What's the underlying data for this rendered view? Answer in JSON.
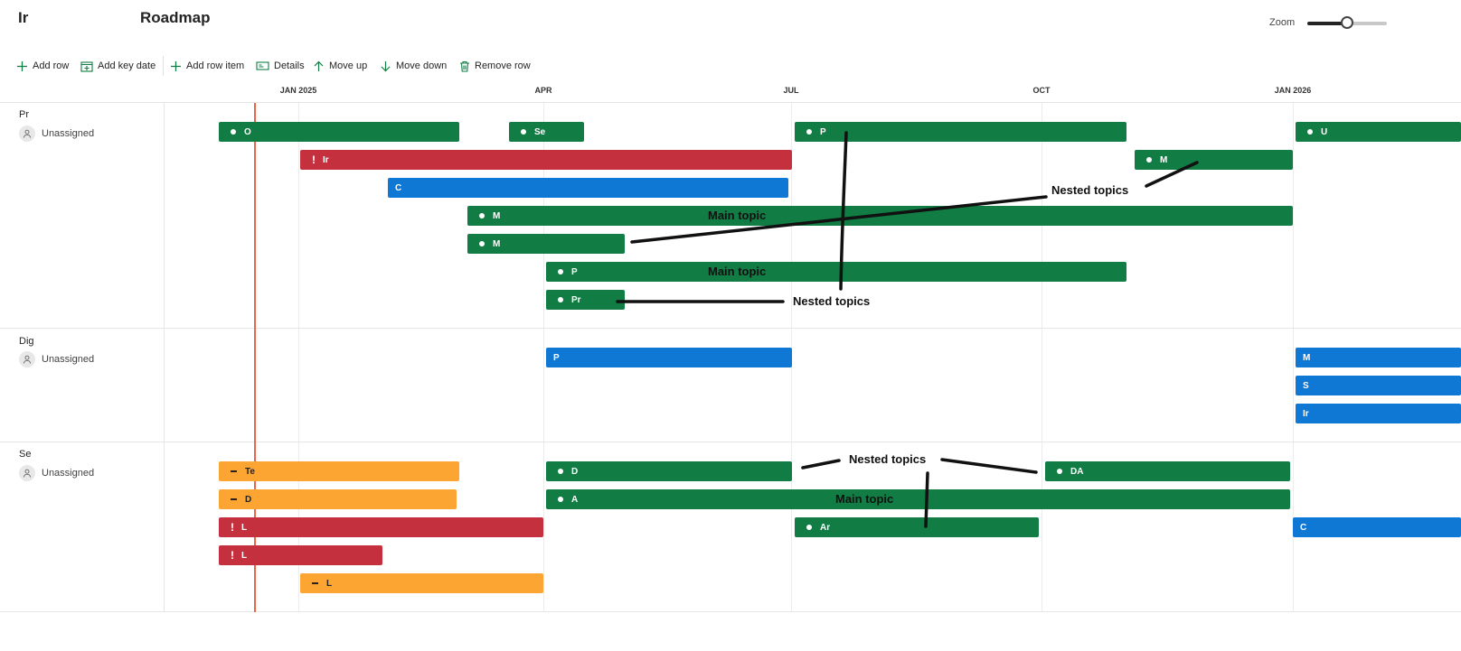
{
  "header": {
    "app_title": "Ir",
    "page_title": "Roadmap",
    "zoom_label": "Zoom",
    "zoom_level": 0.5
  },
  "toolbar": {
    "add_row": "Add row",
    "add_key_date": "Add key date",
    "add_row_item": "Add row item",
    "details": "Details",
    "move_up": "Move up",
    "move_down": "Move down",
    "remove_row": "Remove row",
    "accent_color": "#117c43"
  },
  "timeline": {
    "months": [
      "JAN 2025",
      "APR",
      "JUL",
      "OCT",
      "JAN 2026"
    ]
  },
  "rows": [
    {
      "name": "Pr",
      "owner": "Unassigned",
      "items": [
        {
          "text": "O",
          "color": "green",
          "marker": "dot"
        },
        {
          "text": "Se",
          "color": "green",
          "marker": "dot"
        },
        {
          "text": "P",
          "color": "green",
          "marker": "dot"
        },
        {
          "text": "U",
          "color": "green",
          "marker": "dot"
        },
        {
          "text": "Ir",
          "color": "red",
          "marker": "excl"
        },
        {
          "text": "M",
          "color": "green",
          "marker": "dot"
        },
        {
          "text": "C",
          "color": "blue",
          "marker": "none"
        },
        {
          "text": "M",
          "color": "green",
          "marker": "dot"
        },
        {
          "text": "M",
          "color": "green",
          "marker": "dot"
        },
        {
          "text": "P",
          "color": "green",
          "marker": "dot"
        },
        {
          "text": "Pr",
          "color": "green",
          "marker": "dot"
        }
      ]
    },
    {
      "name": "Dig",
      "owner": "Unassigned",
      "items": [
        {
          "text": "P",
          "color": "blue",
          "marker": "none"
        },
        {
          "text": "M",
          "color": "blue",
          "marker": "none"
        },
        {
          "text": "S",
          "color": "blue",
          "marker": "none"
        },
        {
          "text": "Ir",
          "color": "blue",
          "marker": "none"
        }
      ]
    },
    {
      "name": "Se",
      "owner": "Unassigned",
      "items": [
        {
          "text": "Te",
          "color": "orange",
          "marker": "dash"
        },
        {
          "text": "D",
          "color": "green",
          "marker": "dot"
        },
        {
          "text": "DA",
          "color": "green",
          "marker": "dot"
        },
        {
          "text": "D",
          "color": "orange",
          "marker": "dash"
        },
        {
          "text": "A",
          "color": "green",
          "marker": "dot"
        },
        {
          "text": "L",
          "color": "red",
          "marker": "excl"
        },
        {
          "text": "Ar",
          "color": "green",
          "marker": "dot"
        },
        {
          "text": "C",
          "color": "blue",
          "marker": "none"
        },
        {
          "text": "L",
          "color": "red",
          "marker": "excl"
        },
        {
          "text": "L",
          "color": "orange",
          "marker": "dash"
        }
      ]
    }
  ],
  "annotations": {
    "main_topic": "Main topic",
    "nested_topics": "Nested topics"
  }
}
